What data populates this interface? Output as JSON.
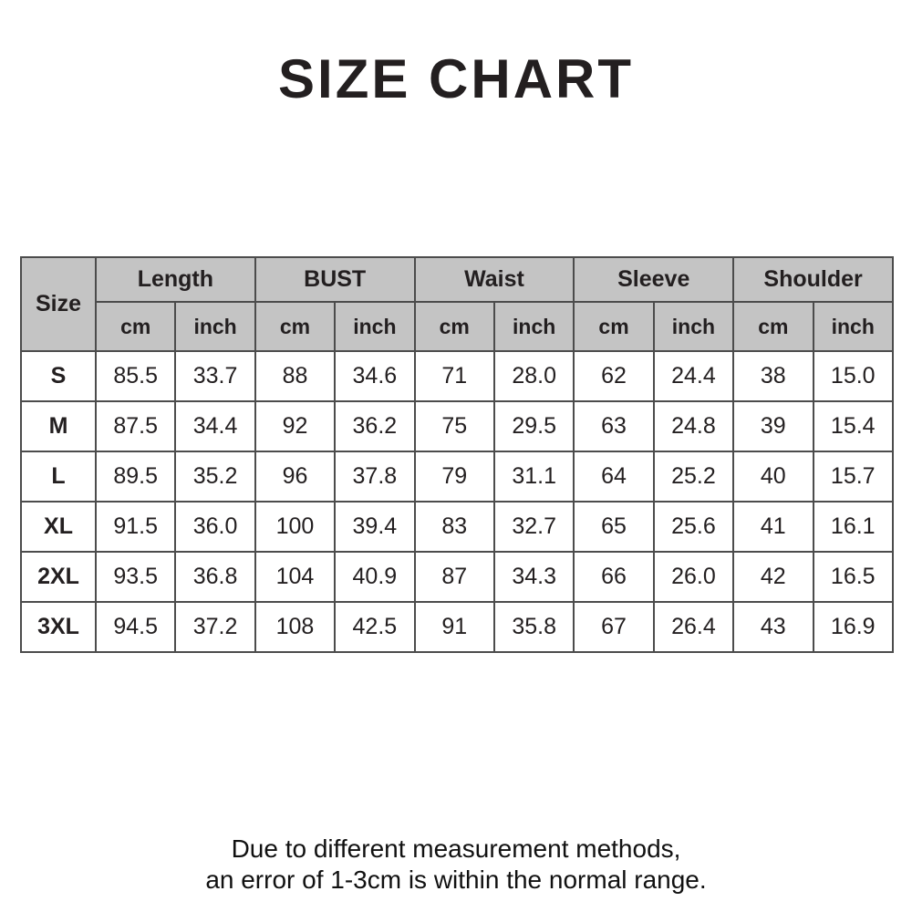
{
  "title": "SIZE CHART",
  "colors": {
    "header_bg": "#c4c4c4",
    "border": "#4c4c4c",
    "text": "#231f20",
    "row_bg": "#ffffff"
  },
  "table": {
    "size_header": "Size",
    "groups": [
      {
        "label": "Length"
      },
      {
        "label": "BUST"
      },
      {
        "label": "Waist"
      },
      {
        "label": "Sleeve"
      },
      {
        "label": "Shoulder"
      }
    ],
    "units": [
      "cm",
      "inch"
    ],
    "rows": [
      {
        "size": "S",
        "values": [
          "85.5",
          "33.7",
          "88",
          "34.6",
          "71",
          "28.0",
          "62",
          "24.4",
          "38",
          "15.0"
        ]
      },
      {
        "size": "M",
        "values": [
          "87.5",
          "34.4",
          "92",
          "36.2",
          "75",
          "29.5",
          "63",
          "24.8",
          "39",
          "15.4"
        ]
      },
      {
        "size": "L",
        "values": [
          "89.5",
          "35.2",
          "96",
          "37.8",
          "79",
          "31.1",
          "64",
          "25.2",
          "40",
          "15.7"
        ]
      },
      {
        "size": "XL",
        "values": [
          "91.5",
          "36.0",
          "100",
          "39.4",
          "83",
          "32.7",
          "65",
          "25.6",
          "41",
          "16.1"
        ]
      },
      {
        "size": "2XL",
        "values": [
          "93.5",
          "36.8",
          "104",
          "40.9",
          "87",
          "34.3",
          "66",
          "26.0",
          "42",
          "16.5"
        ]
      },
      {
        "size": "3XL",
        "values": [
          "94.5",
          "37.2",
          "108",
          "42.5",
          "91",
          "35.8",
          "67",
          "26.4",
          "43",
          "16.9"
        ]
      }
    ]
  },
  "footer": {
    "line1": "Due to different measurement methods,",
    "line2": "an error of 1-3cm is within the normal range."
  },
  "chart_data": {
    "type": "table",
    "title": "SIZE CHART",
    "column_groups": [
      "Length",
      "BUST",
      "Waist",
      "Sleeve",
      "Shoulder"
    ],
    "units_per_group": [
      "cm",
      "inch"
    ],
    "columns": [
      "Size",
      "Length cm",
      "Length inch",
      "BUST cm",
      "BUST inch",
      "Waist cm",
      "Waist inch",
      "Sleeve cm",
      "Sleeve inch",
      "Shoulder cm",
      "Shoulder inch"
    ],
    "rows": [
      [
        "S",
        85.5,
        33.7,
        88,
        34.6,
        71,
        28.0,
        62,
        24.4,
        38,
        15.0
      ],
      [
        "M",
        87.5,
        34.4,
        92,
        36.2,
        75,
        29.5,
        63,
        24.8,
        39,
        15.4
      ],
      [
        "L",
        89.5,
        35.2,
        96,
        37.8,
        79,
        31.1,
        64,
        25.2,
        40,
        15.7
      ],
      [
        "XL",
        91.5,
        36.0,
        100,
        39.4,
        83,
        32.7,
        65,
        25.6,
        41,
        16.1
      ],
      [
        "2XL",
        93.5,
        36.8,
        104,
        40.9,
        87,
        34.3,
        66,
        26.0,
        42,
        16.5
      ],
      [
        "3XL",
        94.5,
        37.2,
        108,
        42.5,
        91,
        35.8,
        67,
        26.4,
        43,
        16.9
      ]
    ],
    "footnote": "Due to different measurement methods, an error of 1-3cm is within the normal range."
  }
}
